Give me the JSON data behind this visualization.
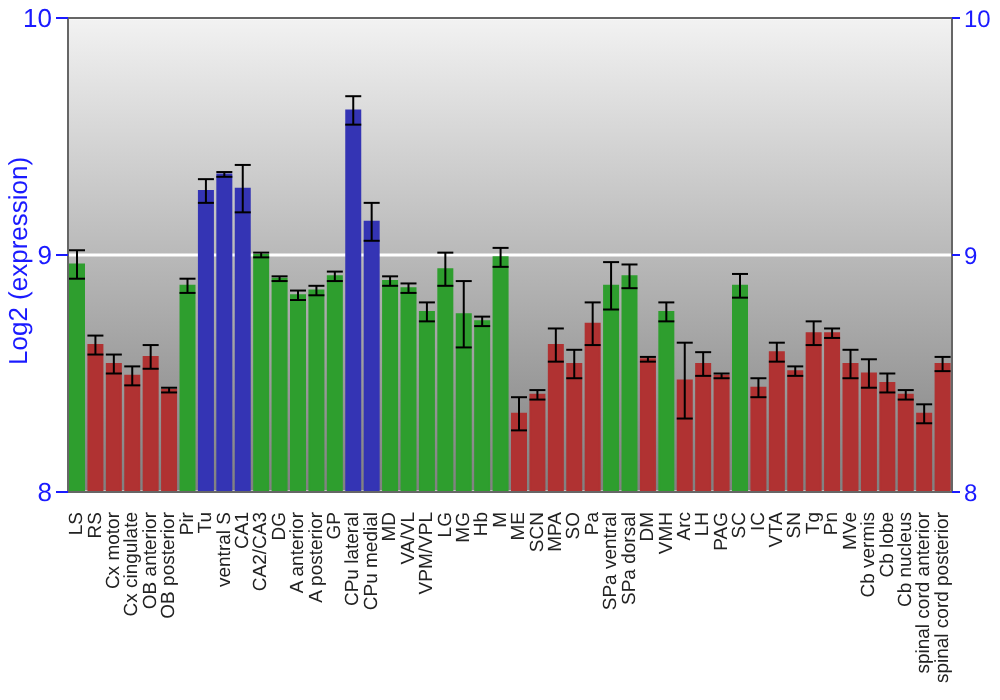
{
  "chart_data": {
    "type": "bar",
    "ylabel": "Log2 (expression)",
    "categories": [
      "LS",
      "RS",
      "Cx motor",
      "Cx cingulate",
      "OB anterior",
      "OB posterior",
      "Pir",
      "Tu",
      "ventral S",
      "CA1",
      "CA2/CA3",
      "DG",
      "A anterior",
      "A posterior",
      "GP",
      "CPu lateral",
      "CPu medial",
      "MD",
      "VA/VL",
      "VPM/VPL",
      "LG",
      "MG",
      "Hb",
      "M",
      "ME",
      "SCN",
      "MPA",
      "SO",
      "Pa",
      "SPa ventral",
      "SPa dorsal",
      "DM",
      "VMH",
      "Arc",
      "LH",
      "PAG",
      "SC",
      "IC",
      "VTA",
      "SN",
      "Tg",
      "Pn",
      "MVe",
      "Cb vermis",
      "Cb lobe",
      "Cb nucleus",
      "spinal cord anterior",
      "spinal cord posterior"
    ],
    "values": [
      8.96,
      8.62,
      8.54,
      8.49,
      8.57,
      8.43,
      8.87,
      9.27,
      9.34,
      9.28,
      9.0,
      8.9,
      8.83,
      8.85,
      8.91,
      9.61,
      9.14,
      8.89,
      8.86,
      8.76,
      8.94,
      8.75,
      8.72,
      8.99,
      8.33,
      8.41,
      8.62,
      8.54,
      8.71,
      8.87,
      8.91,
      8.56,
      8.76,
      8.47,
      8.54,
      8.49,
      8.87,
      8.44,
      8.59,
      8.51,
      8.67,
      8.67,
      8.54,
      8.5,
      8.46,
      8.41,
      8.33,
      8.54
    ],
    "errors": [
      0.06,
      0.04,
      0.04,
      0.04,
      0.05,
      0.01,
      0.03,
      0.05,
      0.01,
      0.1,
      0.01,
      0.01,
      0.02,
      0.02,
      0.02,
      0.06,
      0.08,
      0.02,
      0.02,
      0.04,
      0.07,
      0.14,
      0.02,
      0.04,
      0.07,
      0.02,
      0.07,
      0.06,
      0.09,
      0.1,
      0.05,
      0.01,
      0.04,
      0.16,
      0.05,
      0.01,
      0.05,
      0.04,
      0.04,
      0.02,
      0.05,
      0.02,
      0.06,
      0.06,
      0.04,
      0.02,
      0.04,
      0.03
    ],
    "colors": [
      "#2e9e2e",
      "#b03232",
      "#b03232",
      "#b03232",
      "#b03232",
      "#b03232",
      "#2e9e2e",
      "#3434b4",
      "#3434b4",
      "#3434b4",
      "#2e9e2e",
      "#2e9e2e",
      "#2e9e2e",
      "#2e9e2e",
      "#2e9e2e",
      "#3434b4",
      "#3434b4",
      "#2e9e2e",
      "#2e9e2e",
      "#2e9e2e",
      "#2e9e2e",
      "#2e9e2e",
      "#2e9e2e",
      "#2e9e2e",
      "#b03232",
      "#b03232",
      "#b03232",
      "#b03232",
      "#b03232",
      "#2e9e2e",
      "#2e9e2e",
      "#b03232",
      "#2e9e2e",
      "#b03232",
      "#b03232",
      "#b03232",
      "#2e9e2e",
      "#b03232",
      "#b03232",
      "#b03232",
      "#b03232",
      "#b03232",
      "#b03232",
      "#b03232",
      "#b03232",
      "#b03232",
      "#b03232",
      "#b03232"
    ],
    "ylim": [
      8,
      10
    ],
    "yticks": [
      8,
      9,
      10
    ],
    "y2lim": [
      8,
      10
    ],
    "y2ticks": [
      8,
      9,
      10
    ],
    "grid": "y"
  }
}
